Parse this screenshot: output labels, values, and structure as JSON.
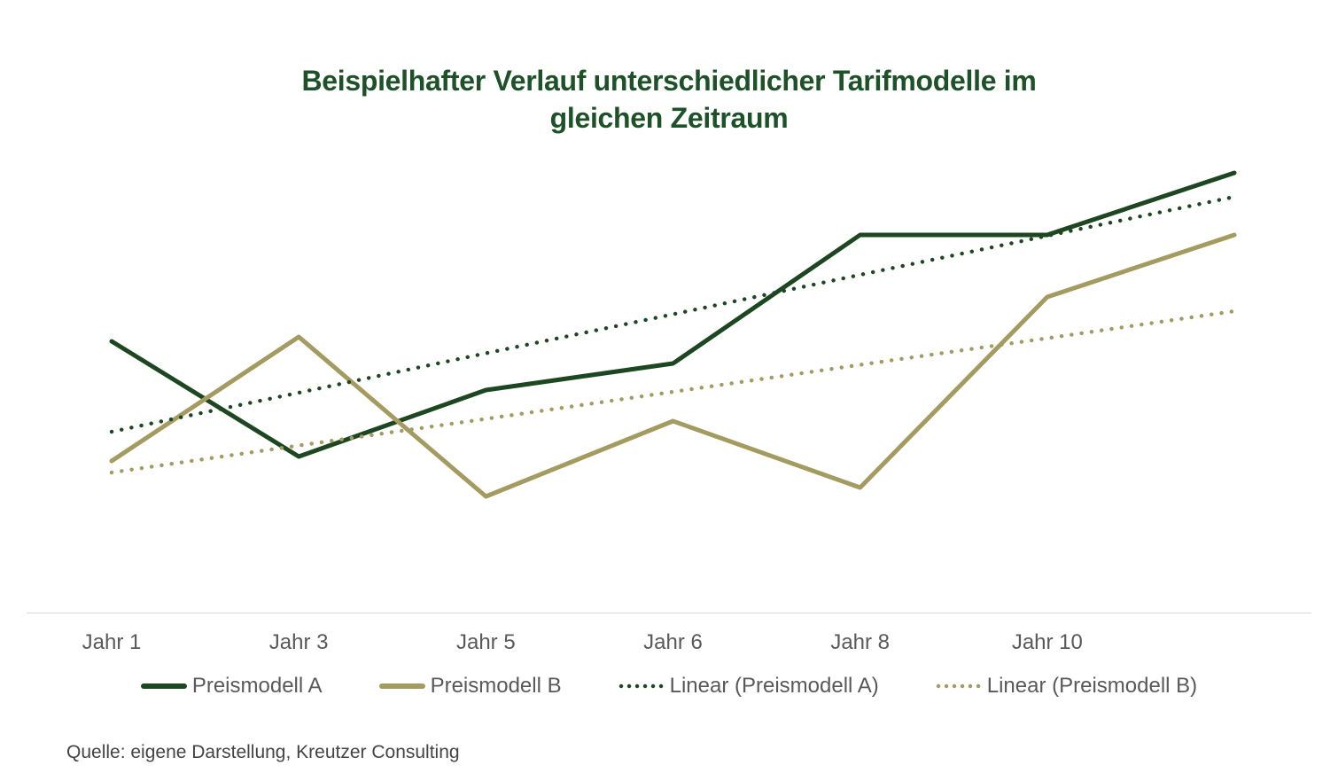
{
  "chart_data": {
    "type": "line",
    "title": "Beispielhafter Verlauf unterschiedlicher Tarifmodelle im gleichen Zeitraum",
    "title_lines": [
      "Beispielhafter Verlauf unterschiedlicher Tarifmodelle im",
      "gleichen Zeitraum"
    ],
    "title_color": "#1d5128",
    "xlabel": "",
    "ylabel": "",
    "grid": false,
    "y_axis_shown": false,
    "legend_position": "bottom",
    "axis_line_color": "#d9d9d9",
    "label_color": "#595959",
    "categories": [
      "Jahr 1",
      "Jahr 3",
      "Jahr 5",
      "Jahr 6",
      "Jahr 8",
      "Jahr 10",
      ""
    ],
    "value_note": "relative values estimated from pixels, no y-axis visible, scale 0-100",
    "series": [
      {
        "name": "Preismodell A",
        "color": "#1d4721",
        "style": "solid",
        "values": [
          61,
          35,
          50,
          56,
          85,
          85,
          99
        ]
      },
      {
        "name": "Preismodell B",
        "color": "#a39b60",
        "style": "solid",
        "values": [
          34,
          62,
          26,
          43,
          28,
          71,
          85
        ]
      },
      {
        "name": "Linear (Preismodell A)",
        "color": "#1d4721",
        "style": "dotted",
        "trendline": true,
        "values": [
          40.6,
          49.4,
          58.3,
          67.1,
          76.0,
          84.8,
          93.6
        ]
      },
      {
        "name": "Linear (Preismodell B)",
        "color": "#a39b60",
        "style": "dotted",
        "trendline": true,
        "values": [
          31.4,
          37.5,
          43.5,
          49.6,
          55.7,
          61.7,
          67.8
        ]
      }
    ]
  },
  "source": {
    "text": "Quelle: eigene Darstellung, Kreutzer Consulting"
  }
}
